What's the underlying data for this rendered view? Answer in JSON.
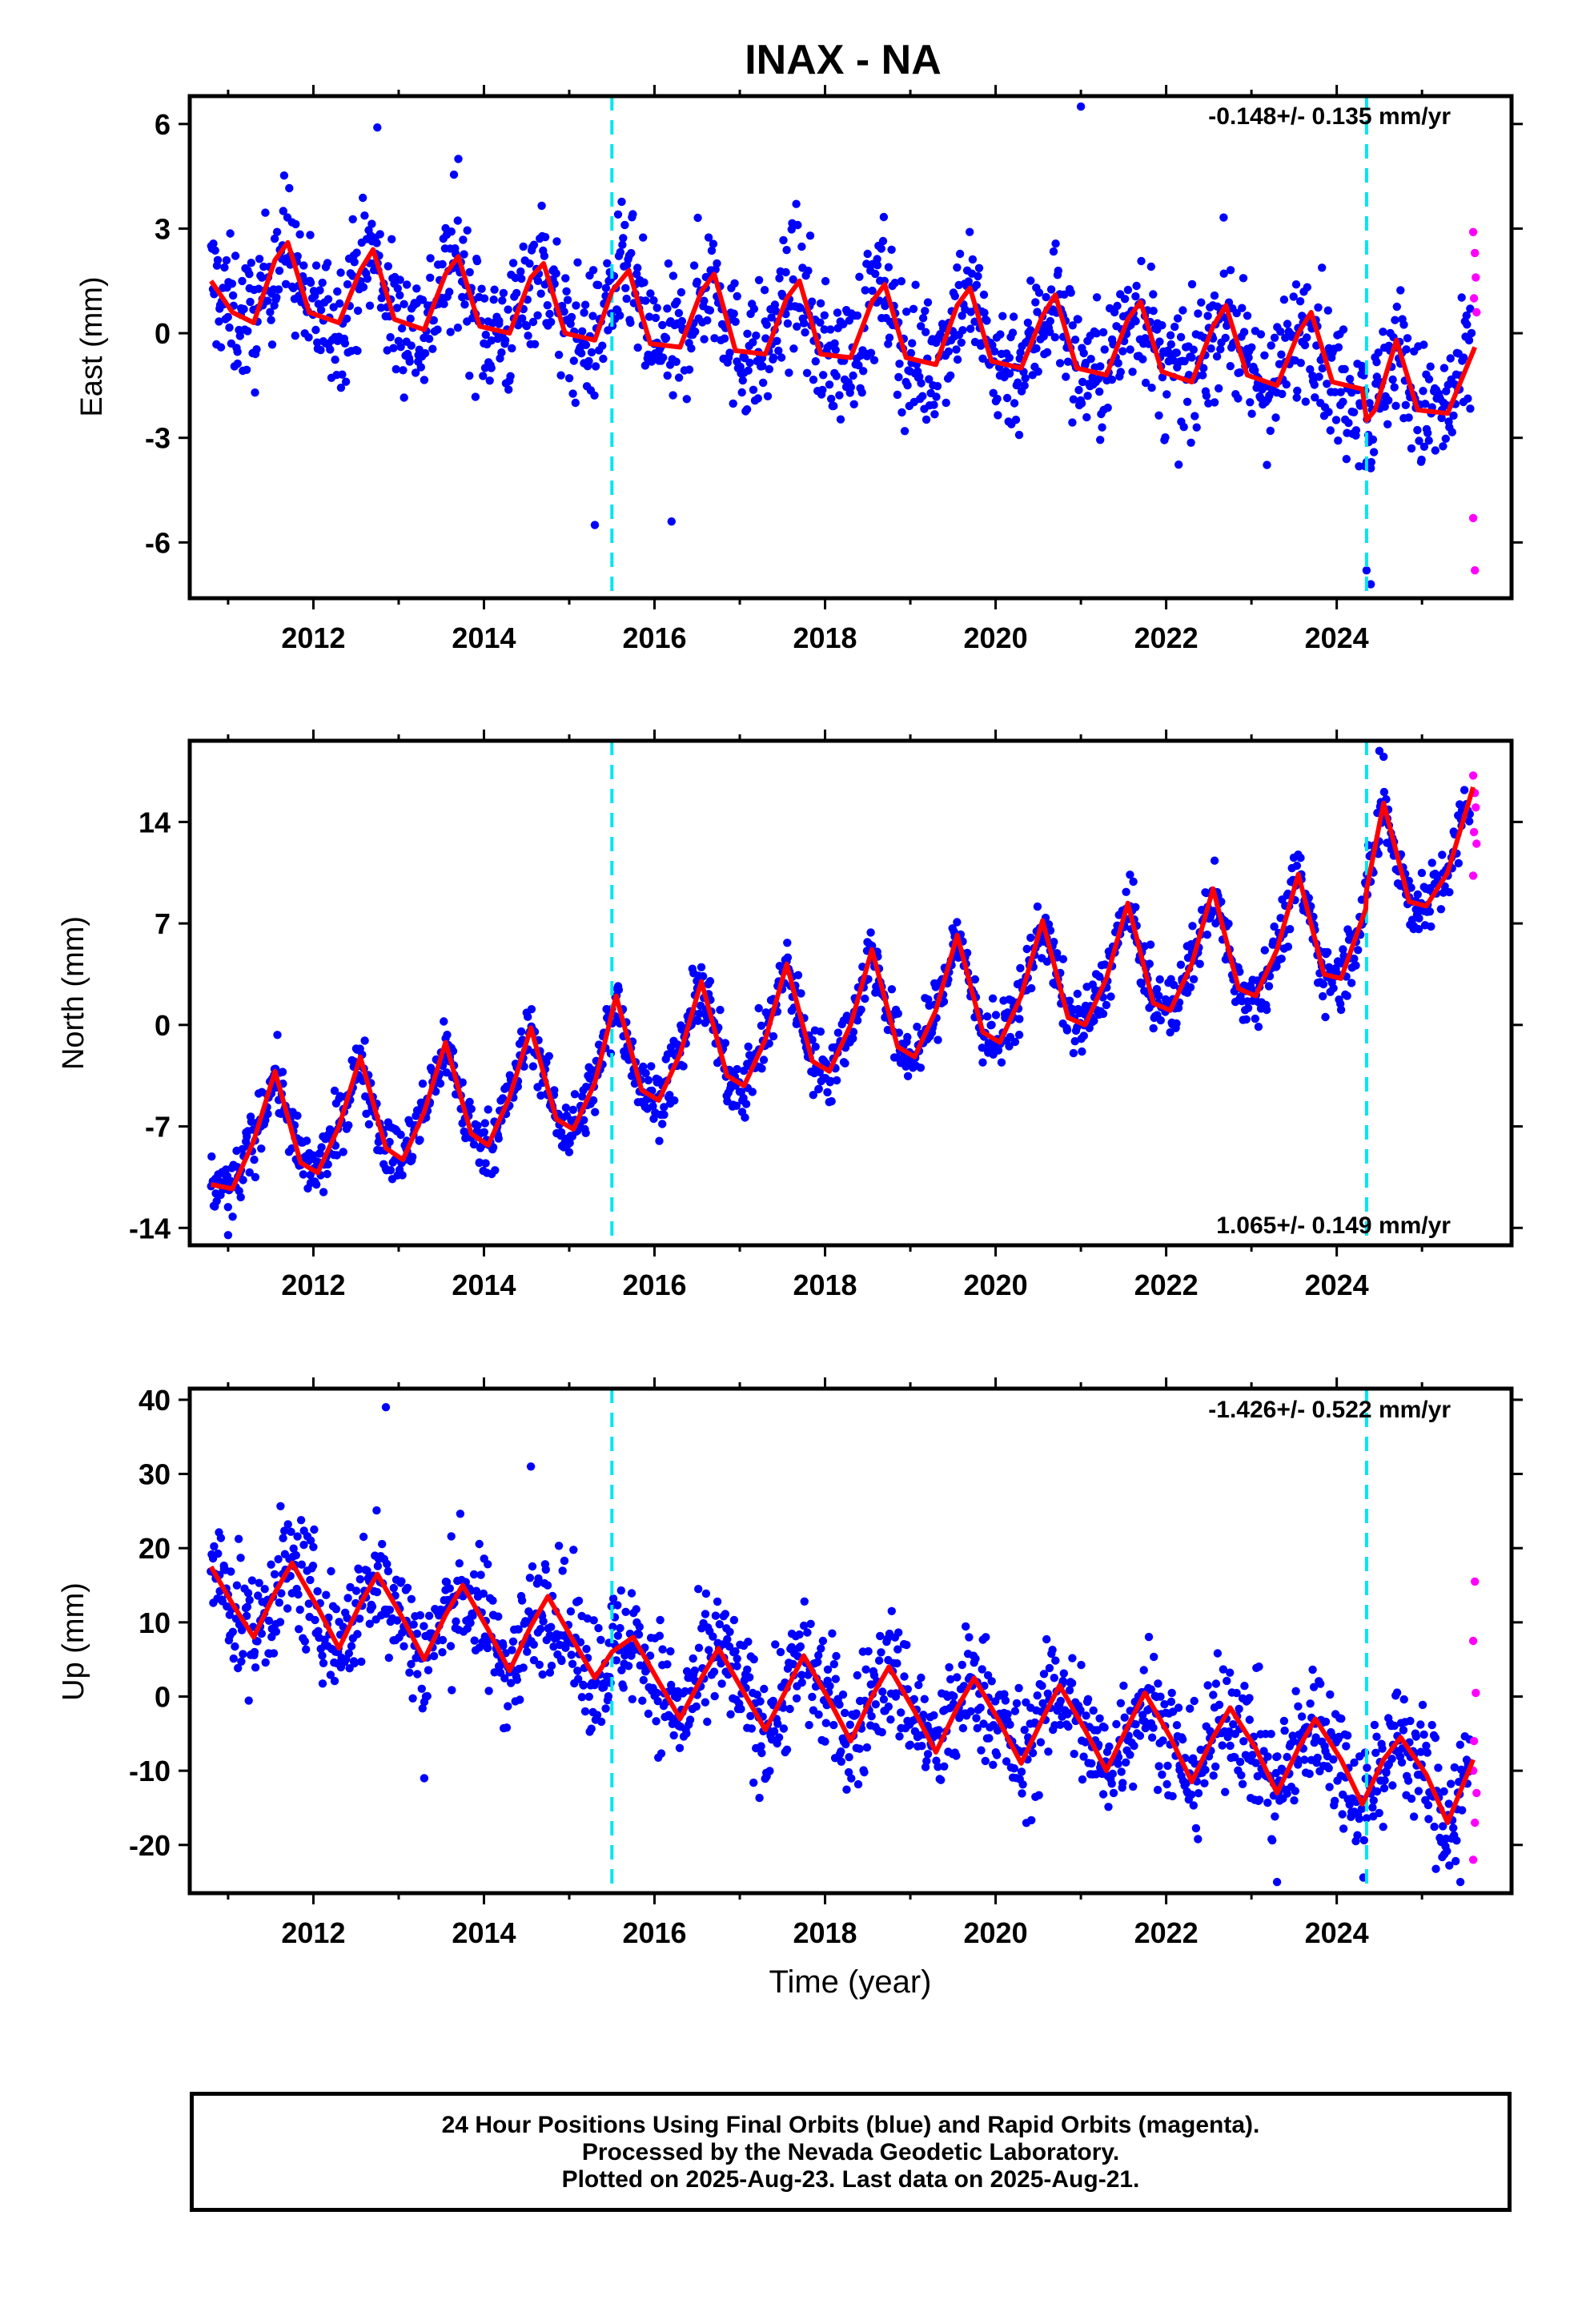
{
  "title": "INAX - NA",
  "xlabel": "Time (year)",
  "footer": {
    "line1": "24 Hour Positions Using Final Orbits (blue) and Rapid Orbits (magenta).",
    "line2": "Processed by the Nevada Geodetic Laboratory.",
    "line3": "Plotted on 2025-Aug-23. Last data on 2025-Aug-21."
  },
  "colors": {
    "final": "#0000ff",
    "rapid": "#ff00ff",
    "model": "#ff0000",
    "break": "#00e5ee"
  },
  "chart_data": [
    {
      "type": "scatter",
      "panel": "east",
      "ylabel": "East (mm)",
      "rate": "-0.148+/- 0.135 mm/yr",
      "rate_position": "top-right",
      "xlim": [
        2010.55,
        2026.05
      ],
      "ylim": [
        -7.6,
        6.8
      ],
      "xticks": [
        "2012",
        "2014",
        "2016",
        "2018",
        "2020",
        "2022",
        "2024"
      ],
      "yticks": [
        "6",
        "3",
        "0",
        "-3",
        "-6"
      ],
      "ytick_values": [
        6,
        3,
        0,
        -3,
        -6
      ],
      "breaks": [
        2015.5,
        2024.35
      ],
      "model": {
        "x": [
          2010.8,
          2011.05,
          2011.3,
          2011.55,
          2011.7,
          2011.95,
          2012.3,
          2012.55,
          2012.7,
          2012.95,
          2013.3,
          2013.55,
          2013.7,
          2013.95,
          2014.3,
          2014.55,
          2014.7,
          2014.95,
          2015.3,
          2015.5,
          2015.7,
          2015.95,
          2016.3,
          2016.55,
          2016.7,
          2016.95,
          2017.3,
          2017.55,
          2017.7,
          2017.95,
          2018.3,
          2018.55,
          2018.7,
          2018.95,
          2019.3,
          2019.55,
          2019.7,
          2019.95,
          2020.3,
          2020.55,
          2020.7,
          2020.95,
          2021.3,
          2021.55,
          2021.7,
          2021.95,
          2022.3,
          2022.55,
          2022.7,
          2022.95,
          2023.3,
          2023.55,
          2023.7,
          2023.95,
          2024.3,
          2024.35,
          2024.45,
          2024.7,
          2024.95,
          2025.3,
          2025.62
        ],
        "y": [
          1.5,
          0.6,
          0.3,
          2.1,
          2.6,
          0.6,
          0.3,
          1.8,
          2.4,
          0.4,
          0.1,
          1.7,
          2.2,
          0.2,
          0.0,
          1.6,
          2.0,
          0.0,
          -0.2,
          1.2,
          1.8,
          -0.3,
          -0.4,
          1.2,
          1.7,
          -0.5,
          -0.6,
          1.0,
          1.5,
          -0.6,
          -0.7,
          0.9,
          1.4,
          -0.7,
          -0.9,
          0.8,
          1.3,
          -0.8,
          -1.0,
          0.5,
          1.1,
          -1.0,
          -1.2,
          0.4,
          0.9,
          -1.1,
          -1.4,
          0.2,
          0.8,
          -1.2,
          -1.5,
          0.0,
          0.6,
          -1.4,
          -1.6,
          -2.5,
          -2.2,
          -0.2,
          -2.2,
          -2.3,
          -0.4
        ]
      },
      "outliers_final": [
        [
          2021.0,
          6.5
        ],
        [
          2012.75,
          5.9
        ],
        [
          2013.7,
          5.0
        ],
        [
          2015.3,
          -5.5
        ],
        [
          2016.2,
          -5.4
        ],
        [
          2024.35,
          -6.8
        ],
        [
          2024.4,
          -7.2
        ]
      ],
      "rapid": [
        [
          2025.6,
          2.9
        ],
        [
          2025.62,
          2.3
        ],
        [
          2025.63,
          1.6
        ],
        [
          2025.61,
          1.0
        ],
        [
          2025.64,
          0.6
        ],
        [
          2025.6,
          -5.3
        ],
        [
          2025.62,
          -6.8
        ]
      ]
    },
    {
      "type": "scatter",
      "panel": "north",
      "ylabel": "North (mm)",
      "rate": "1.065+/- 0.149 mm/yr",
      "rate_position": "bottom-right",
      "xlim": [
        2010.55,
        2026.05
      ],
      "ylim": [
        -15.2,
        19.6
      ],
      "xticks": [
        "2012",
        "2014",
        "2016",
        "2018",
        "2020",
        "2022",
        "2024"
      ],
      "yticks": [
        "14",
        "7",
        "0",
        "-7",
        "-14"
      ],
      "ytick_values": [
        14,
        7,
        0,
        -7,
        -14
      ],
      "breaks": [
        2015.5,
        2024.35
      ],
      "model": {
        "x": [
          2010.8,
          2011.05,
          2011.3,
          2011.55,
          2011.85,
          2012.05,
          2012.3,
          2012.55,
          2012.85,
          2013.05,
          2013.3,
          2013.55,
          2013.85,
          2014.05,
          2014.3,
          2014.55,
          2014.85,
          2015.05,
          2015.3,
          2015.55,
          2015.85,
          2016.05,
          2016.3,
          2016.55,
          2016.85,
          2017.05,
          2017.3,
          2017.55,
          2017.85,
          2018.05,
          2018.3,
          2018.55,
          2018.85,
          2019.05,
          2019.3,
          2019.55,
          2019.85,
          2020.05,
          2020.3,
          2020.55,
          2020.85,
          2021.05,
          2021.3,
          2021.55,
          2021.85,
          2022.05,
          2022.3,
          2022.55,
          2022.85,
          2023.05,
          2023.3,
          2023.55,
          2023.85,
          2024.05,
          2024.34,
          2024.35,
          2024.55,
          2024.85,
          2025.05,
          2025.3,
          2025.6
        ],
        "y": [
          -11.0,
          -11.3,
          -8.0,
          -3.2,
          -9.5,
          -10.2,
          -7.0,
          -2.2,
          -8.5,
          -9.3,
          -6.0,
          -1.2,
          -7.5,
          -8.3,
          -5.0,
          -0.2,
          -6.5,
          -7.2,
          -4.0,
          2.0,
          -4.5,
          -5.2,
          -2.0,
          3.0,
          -3.5,
          -4.2,
          -1.0,
          4.2,
          -2.5,
          -3.2,
          0.0,
          5.2,
          -1.5,
          -2.2,
          1.0,
          6.2,
          -0.5,
          -1.2,
          2.0,
          7.2,
          0.5,
          0.0,
          3.2,
          8.4,
          1.5,
          1.0,
          4.2,
          9.4,
          2.5,
          2.0,
          5.2,
          10.4,
          3.5,
          3.2,
          8.0,
          9.3,
          15.3,
          8.5,
          8.2,
          10.5,
          16.4
        ]
      },
      "outliers_final": [
        [
          2011.0,
          -14.5
        ],
        [
          2024.5,
          18.9
        ],
        [
          2024.55,
          18.5
        ]
      ],
      "rapid": [
        [
          2025.6,
          17.2
        ],
        [
          2025.62,
          16.0
        ],
        [
          2025.63,
          15.0
        ],
        [
          2025.61,
          13.3
        ],
        [
          2025.64,
          12.5
        ],
        [
          2025.6,
          10.3
        ]
      ]
    },
    {
      "type": "scatter",
      "panel": "up",
      "ylabel": "Up (mm)",
      "rate": "-1.426+/- 0.522 mm/yr",
      "rate_position": "top-right",
      "xlim": [
        2010.55,
        2026.05
      ],
      "ylim": [
        -26.5,
        41.5
      ],
      "xticks": [
        "2012",
        "2014",
        "2016",
        "2018",
        "2020",
        "2022",
        "2024"
      ],
      "yticks": [
        "40",
        "30",
        "20",
        "10",
        "0",
        "-10",
        "-20"
      ],
      "ytick_values": [
        40,
        30,
        20,
        10,
        0,
        -10,
        -20
      ],
      "breaks": [
        2015.5,
        2024.35
      ],
      "model": {
        "x": [
          2010.8,
          2011.05,
          2011.3,
          2011.55,
          2011.75,
          2012.05,
          2012.3,
          2012.55,
          2012.75,
          2013.05,
          2013.3,
          2013.55,
          2013.75,
          2014.05,
          2014.3,
          2014.55,
          2014.75,
          2015.05,
          2015.3,
          2015.5,
          2015.75,
          2016.05,
          2016.3,
          2016.55,
          2016.75,
          2017.05,
          2017.3,
          2017.55,
          2017.75,
          2018.05,
          2018.3,
          2018.55,
          2018.75,
          2019.05,
          2019.3,
          2019.55,
          2019.75,
          2020.05,
          2020.3,
          2020.55,
          2020.75,
          2021.05,
          2021.3,
          2021.55,
          2021.75,
          2022.05,
          2022.3,
          2022.55,
          2022.75,
          2023.05,
          2023.3,
          2023.55,
          2023.75,
          2024.05,
          2024.3,
          2024.55,
          2024.75,
          2025.05,
          2025.3,
          2025.6
        ],
        "y": [
          17.5,
          12.5,
          8.0,
          14.0,
          18.0,
          12.0,
          6.5,
          12.5,
          16.5,
          10.5,
          5.0,
          11.0,
          15.0,
          9.0,
          3.5,
          9.5,
          13.5,
          7.5,
          2.5,
          6.0,
          8.0,
          2.0,
          -3.0,
          2.5,
          6.5,
          0.5,
          -4.5,
          1.0,
          5.5,
          -0.5,
          -6.0,
          0.0,
          4.0,
          -2.0,
          -7.5,
          -1.5,
          2.5,
          -3.5,
          -9.0,
          -3.0,
          1.5,
          -4.5,
          -10.0,
          -4.0,
          0.5,
          -5.5,
          -11.5,
          -5.5,
          -1.5,
          -7.0,
          -13.0,
          -7.0,
          -3.0,
          -8.5,
          -14.5,
          -8.5,
          -5.5,
          -10.5,
          -17.0,
          -8.5
        ]
      },
      "outliers_final": [
        [
          2012.85,
          39.0
        ],
        [
          2014.55,
          31.0
        ],
        [
          2013.3,
          -11.0
        ],
        [
          2023.3,
          -25.0
        ],
        [
          2025.45,
          -25.0
        ]
      ],
      "rapid": [
        [
          2025.62,
          15.5
        ],
        [
          2025.6,
          7.5
        ],
        [
          2025.63,
          0.5
        ],
        [
          2025.61,
          -6.0
        ],
        [
          2025.6,
          -10.0
        ],
        [
          2025.64,
          -13.0
        ],
        [
          2025.62,
          -17.0
        ],
        [
          2025.6,
          -22.0
        ]
      ]
    }
  ]
}
